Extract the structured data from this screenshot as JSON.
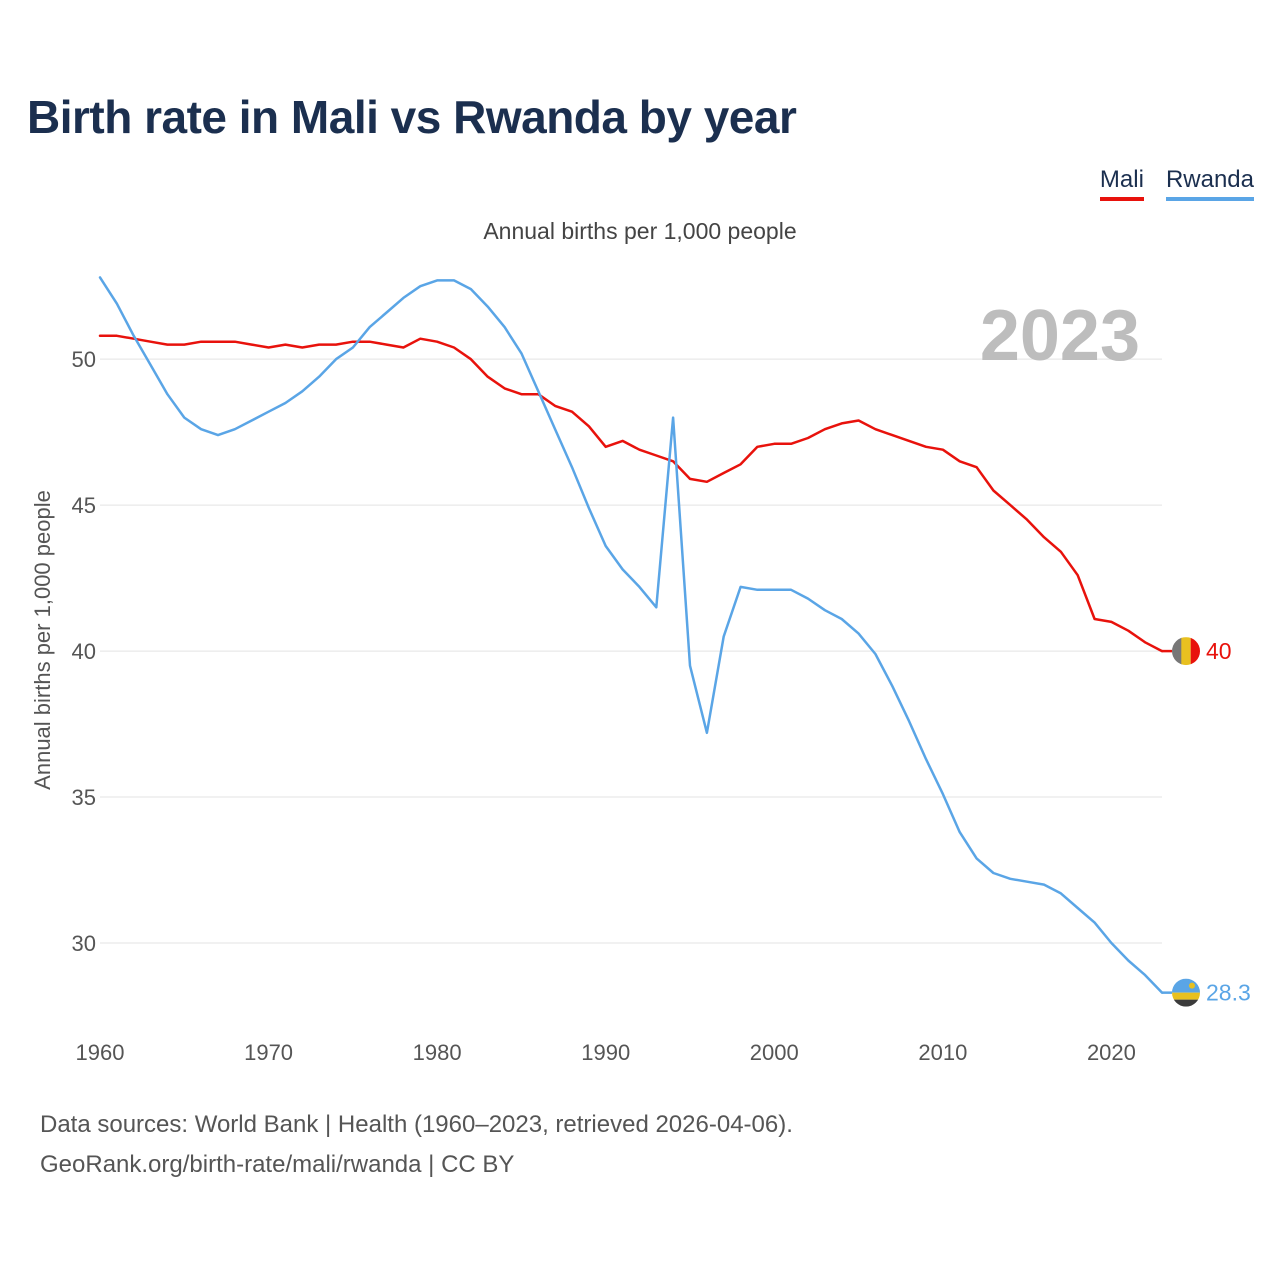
{
  "title": "Birth rate in Mali vs Rwanda by year",
  "subtitle": "Annual births per 1,000 people",
  "legend": [
    {
      "name": "Mali",
      "color": "#e8120c"
    },
    {
      "name": "Rwanda",
      "color": "#5aa5e6"
    }
  ],
  "footer": {
    "line1": "Data sources: World Bank | Health (1960–2023, retrieved 2026-04-06).",
    "line2": "GeoRank.org/birth-rate/mali/rwanda | CC BY"
  },
  "chart_data": {
    "type": "line",
    "title": "Birth rate in Mali vs Rwanda by year",
    "xlabel": "",
    "ylabel": "Annual births per 1,000 people",
    "xlim": [
      1960,
      2023
    ],
    "ylim": [
      27.5,
      53.5
    ],
    "yticks": [
      30,
      35,
      40,
      45,
      50
    ],
    "xticks": [
      1960,
      1970,
      1980,
      1990,
      2000,
      2010,
      2020
    ],
    "grid": true,
    "year_label": "2023",
    "x": [
      1960,
      1961,
      1962,
      1963,
      1964,
      1965,
      1966,
      1967,
      1968,
      1969,
      1970,
      1971,
      1972,
      1973,
      1974,
      1975,
      1976,
      1977,
      1978,
      1979,
      1980,
      1981,
      1982,
      1983,
      1984,
      1985,
      1986,
      1987,
      1988,
      1989,
      1990,
      1991,
      1992,
      1993,
      1994,
      1995,
      1996,
      1997,
      1998,
      1999,
      2000,
      2001,
      2002,
      2003,
      2004,
      2005,
      2006,
      2007,
      2008,
      2009,
      2010,
      2011,
      2012,
      2013,
      2014,
      2015,
      2016,
      2017,
      2018,
      2019,
      2020,
      2021,
      2022,
      2023
    ],
    "series": [
      {
        "name": "Mali",
        "color": "#e8120c",
        "end_label": "40",
        "values": [
          50.8,
          50.8,
          50.7,
          50.6,
          50.5,
          50.5,
          50.6,
          50.6,
          50.6,
          50.5,
          50.4,
          50.5,
          50.4,
          50.5,
          50.5,
          50.6,
          50.6,
          50.5,
          50.4,
          50.7,
          50.6,
          50.4,
          50.0,
          49.4,
          49.0,
          48.8,
          48.8,
          48.4,
          48.2,
          47.7,
          47.0,
          47.2,
          46.9,
          46.7,
          46.5,
          45.9,
          45.8,
          46.1,
          46.4,
          47.0,
          47.1,
          47.1,
          47.3,
          47.6,
          47.8,
          47.9,
          47.6,
          47.4,
          47.2,
          47.0,
          46.9,
          46.5,
          46.3,
          45.5,
          45.0,
          44.5,
          43.9,
          43.4,
          42.6,
          41.1,
          41.0,
          40.7,
          40.3,
          40.0
        ]
      },
      {
        "name": "Rwanda",
        "color": "#5aa5e6",
        "end_label": "28.3",
        "values": [
          52.8,
          51.9,
          50.8,
          49.8,
          48.8,
          48.0,
          47.6,
          47.4,
          47.6,
          47.9,
          48.2,
          48.5,
          48.9,
          49.4,
          50.0,
          50.4,
          51.1,
          51.6,
          52.1,
          52.5,
          52.7,
          52.7,
          52.4,
          51.8,
          51.1,
          50.2,
          48.9,
          47.6,
          46.3,
          44.9,
          43.6,
          42.8,
          42.2,
          41.5,
          48.0,
          39.5,
          37.2,
          40.5,
          42.2,
          42.1,
          42.1,
          42.1,
          41.8,
          41.4,
          41.1,
          40.6,
          39.9,
          38.8,
          37.6,
          36.3,
          35.1,
          33.8,
          32.9,
          32.4,
          32.2,
          32.1,
          32.0,
          31.7,
          31.2,
          30.7,
          30.0,
          29.4,
          28.9,
          28.3
        ]
      }
    ]
  }
}
